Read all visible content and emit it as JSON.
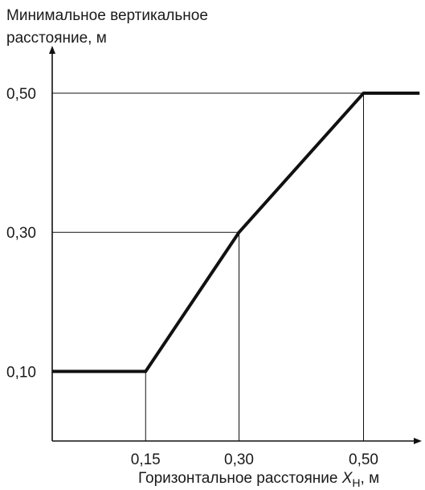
{
  "chart_data": {
    "type": "line",
    "ylabel_line1": "Минимальное вертикальное",
    "ylabel_line2": "расстояние, м",
    "xlabel_prefix": "Горизонтальное расстояние ",
    "xlabel_var": "X",
    "xlabel_sub": "Н",
    "xlabel_suffix": ", м",
    "x_ticks": [
      {
        "value": 0.15,
        "label": "0,15"
      },
      {
        "value": 0.3,
        "label": "0,30"
      },
      {
        "value": 0.5,
        "label": "0,50"
      }
    ],
    "y_ticks": [
      {
        "value": 0.1,
        "label": "0,10"
      },
      {
        "value": 0.3,
        "label": "0,30"
      },
      {
        "value": 0.5,
        "label": "0,50"
      }
    ],
    "series": [
      {
        "x": [
          0.0,
          0.15,
          0.3,
          0.5,
          0.59
        ],
        "y": [
          0.1,
          0.1,
          0.3,
          0.5,
          0.5
        ]
      }
    ],
    "reference_lines": [
      {
        "x": 0.15,
        "y": 0.1
      },
      {
        "x": 0.3,
        "y": 0.3
      },
      {
        "x": 0.5,
        "y": 0.5
      }
    ],
    "xlim": [
      0.0,
      0.59
    ],
    "ylim": [
      0.0,
      0.5
    ],
    "grid": false,
    "legend": "none",
    "line_color": "#111111"
  }
}
